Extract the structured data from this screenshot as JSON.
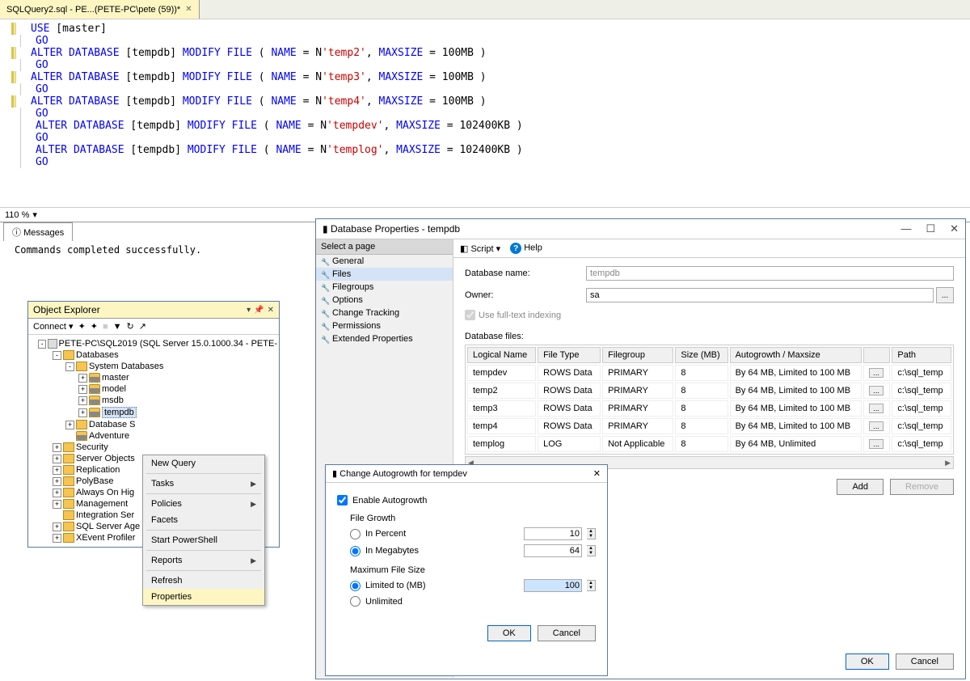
{
  "tab": {
    "label": "SQLQuery2.sql - PE...(PETE-PC\\pete (59))*"
  },
  "sql": {
    "lines": [
      {
        "y": true,
        "tokens": [
          [
            "kw",
            "USE"
          ],
          [
            "norm",
            " [master]"
          ]
        ]
      },
      {
        "y": false,
        "tokens": [
          [
            "go",
            "GO"
          ]
        ]
      },
      {
        "y": true,
        "tokens": [
          [
            "kw",
            "ALTER DATABASE"
          ],
          [
            "norm",
            " [tempdb] "
          ],
          [
            "kw",
            "MODIFY FILE"
          ],
          [
            "norm",
            " "
          ],
          [
            "norm",
            "("
          ],
          [
            "norm",
            " "
          ],
          [
            "kw",
            "NAME"
          ],
          [
            "norm",
            " "
          ],
          [
            "norm",
            "="
          ],
          [
            "norm",
            " N"
          ],
          [
            "str",
            "'temp2'"
          ],
          [
            "norm",
            ","
          ],
          [
            "norm",
            " "
          ],
          [
            "kw",
            "MAXSIZE"
          ],
          [
            "norm",
            " "
          ],
          [
            "norm",
            "="
          ],
          [
            "norm",
            " 100MB "
          ],
          [
            "norm",
            ")"
          ]
        ]
      },
      {
        "y": false,
        "tokens": [
          [
            "go",
            "GO"
          ]
        ]
      },
      {
        "y": true,
        "tokens": [
          [
            "kw",
            "ALTER DATABASE"
          ],
          [
            "norm",
            " [tempdb] "
          ],
          [
            "kw",
            "MODIFY FILE"
          ],
          [
            "norm",
            " "
          ],
          [
            "norm",
            "("
          ],
          [
            "norm",
            " "
          ],
          [
            "kw",
            "NAME"
          ],
          [
            "norm",
            " "
          ],
          [
            "norm",
            "="
          ],
          [
            "norm",
            " N"
          ],
          [
            "str",
            "'temp3'"
          ],
          [
            "norm",
            ","
          ],
          [
            "norm",
            " "
          ],
          [
            "kw",
            "MAXSIZE"
          ],
          [
            "norm",
            " "
          ],
          [
            "norm",
            "="
          ],
          [
            "norm",
            " 100MB "
          ],
          [
            "norm",
            ")"
          ]
        ]
      },
      {
        "y": false,
        "tokens": [
          [
            "go",
            "GO"
          ]
        ]
      },
      {
        "y": true,
        "tokens": [
          [
            "kw",
            "ALTER DATABASE"
          ],
          [
            "norm",
            " [tempdb] "
          ],
          [
            "kw",
            "MODIFY FILE"
          ],
          [
            "norm",
            " "
          ],
          [
            "norm",
            "("
          ],
          [
            "norm",
            " "
          ],
          [
            "kw",
            "NAME"
          ],
          [
            "norm",
            " "
          ],
          [
            "norm",
            "="
          ],
          [
            "norm",
            " N"
          ],
          [
            "str",
            "'temp4'"
          ],
          [
            "norm",
            ","
          ],
          [
            "norm",
            " "
          ],
          [
            "kw",
            "MAXSIZE"
          ],
          [
            "norm",
            " "
          ],
          [
            "norm",
            "="
          ],
          [
            "norm",
            " 100MB "
          ],
          [
            "norm",
            ")"
          ]
        ]
      },
      {
        "y": false,
        "tokens": [
          [
            "go",
            "GO"
          ]
        ]
      },
      {
        "y": false,
        "tokens": [
          [
            "kw",
            "ALTER DATABASE"
          ],
          [
            "norm",
            " [tempdb] "
          ],
          [
            "kw",
            "MODIFY FILE"
          ],
          [
            "norm",
            " "
          ],
          [
            "norm",
            "("
          ],
          [
            "norm",
            " "
          ],
          [
            "kw",
            "NAME"
          ],
          [
            "norm",
            " "
          ],
          [
            "norm",
            "="
          ],
          [
            "norm",
            " N"
          ],
          [
            "str",
            "'tempdev'"
          ],
          [
            "norm",
            ","
          ],
          [
            "norm",
            " "
          ],
          [
            "kw",
            "MAXSIZE"
          ],
          [
            "norm",
            " "
          ],
          [
            "norm",
            "="
          ],
          [
            "norm",
            " 102400KB "
          ],
          [
            "norm",
            ")"
          ]
        ]
      },
      {
        "y": false,
        "tokens": [
          [
            "go",
            "GO"
          ]
        ]
      },
      {
        "y": false,
        "tokens": [
          [
            "kw",
            "ALTER DATABASE"
          ],
          [
            "norm",
            " [tempdb] "
          ],
          [
            "kw",
            "MODIFY FILE"
          ],
          [
            "norm",
            " "
          ],
          [
            "norm",
            "("
          ],
          [
            "norm",
            " "
          ],
          [
            "kw",
            "NAME"
          ],
          [
            "norm",
            " "
          ],
          [
            "norm",
            "="
          ],
          [
            "norm",
            " N"
          ],
          [
            "str",
            "'templog'"
          ],
          [
            "norm",
            ","
          ],
          [
            "norm",
            " "
          ],
          [
            "kw",
            "MAXSIZE"
          ],
          [
            "norm",
            " "
          ],
          [
            "norm",
            "="
          ],
          [
            "norm",
            " 102400KB "
          ],
          [
            "norm",
            ")"
          ]
        ]
      },
      {
        "y": false,
        "tokens": [
          [
            "go",
            "GO"
          ]
        ]
      }
    ]
  },
  "zoom": "110 %",
  "messages": {
    "tab": "Messages",
    "text": "Commands completed successfully."
  },
  "objexp": {
    "title": "Object Explorer",
    "connect": "Connect ▾",
    "tree": [
      {
        "indent": 0,
        "exp": "-",
        "icon": "server",
        "label": "PETE-PC\\SQL2019 (SQL Server 15.0.1000.34 - PETE-"
      },
      {
        "indent": 1,
        "exp": "-",
        "icon": "folder",
        "label": "Databases"
      },
      {
        "indent": 2,
        "exp": "-",
        "icon": "folder",
        "label": "System Databases"
      },
      {
        "indent": 3,
        "exp": "+",
        "icon": "db",
        "label": "master"
      },
      {
        "indent": 3,
        "exp": "+",
        "icon": "db",
        "label": "model"
      },
      {
        "indent": 3,
        "exp": "+",
        "icon": "db",
        "label": "msdb"
      },
      {
        "indent": 3,
        "exp": "+",
        "icon": "db",
        "label": "tempdb",
        "sel": true
      },
      {
        "indent": 2,
        "exp": "+",
        "icon": "folder",
        "label": "Database S"
      },
      {
        "indent": 2,
        "exp": "",
        "icon": "db",
        "label": "Adventure"
      },
      {
        "indent": 1,
        "exp": "+",
        "icon": "folder",
        "label": "Security"
      },
      {
        "indent": 1,
        "exp": "+",
        "icon": "folder",
        "label": "Server Objects"
      },
      {
        "indent": 1,
        "exp": "+",
        "icon": "folder",
        "label": "Replication"
      },
      {
        "indent": 1,
        "exp": "+",
        "icon": "folder",
        "label": "PolyBase"
      },
      {
        "indent": 1,
        "exp": "+",
        "icon": "folder",
        "label": "Always On Hig"
      },
      {
        "indent": 1,
        "exp": "+",
        "icon": "folder",
        "label": "Management"
      },
      {
        "indent": 1,
        "exp": "",
        "icon": "folder",
        "label": "Integration Ser"
      },
      {
        "indent": 1,
        "exp": "+",
        "icon": "folder",
        "label": "SQL Server Age"
      },
      {
        "indent": 1,
        "exp": "+",
        "icon": "folder",
        "label": "XEvent Profiler"
      }
    ]
  },
  "ctx": {
    "items": [
      {
        "label": "New Query"
      },
      {
        "sep": true
      },
      {
        "label": "Tasks",
        "sub": true
      },
      {
        "sep": true
      },
      {
        "label": "Policies",
        "sub": true
      },
      {
        "label": "Facets"
      },
      {
        "sep": true
      },
      {
        "label": "Start PowerShell"
      },
      {
        "sep": true
      },
      {
        "label": "Reports",
        "sub": true
      },
      {
        "sep": true
      },
      {
        "label": "Refresh"
      },
      {
        "label": "Properties",
        "hl": true
      }
    ]
  },
  "dbprop": {
    "title": "Database Properties - tempdb",
    "side_hdr": "Select a page",
    "pages": [
      "General",
      "Files",
      "Filegroups",
      "Options",
      "Change Tracking",
      "Permissions",
      "Extended Properties"
    ],
    "selected_page": 1,
    "script": "Script",
    "help": "Help",
    "dbname_label": "Database name:",
    "dbname": "tempdb",
    "owner_label": "Owner:",
    "owner": "sa",
    "fulltext_label": "Use full-text indexing",
    "files_label": "Database files:",
    "columns": [
      "Logical Name",
      "File Type",
      "Filegroup",
      "Size (MB)",
      "Autogrowth / Maxsize",
      "",
      "Path"
    ],
    "rows": [
      [
        "tempdev",
        "ROWS Data",
        "PRIMARY",
        "8",
        "By 64 MB, Limited to 100 MB",
        "...",
        "c:\\sql_temp"
      ],
      [
        "temp2",
        "ROWS Data",
        "PRIMARY",
        "8",
        "By 64 MB, Limited to 100 MB",
        "...",
        "c:\\sql_temp"
      ],
      [
        "temp3",
        "ROWS Data",
        "PRIMARY",
        "8",
        "By 64 MB, Limited to 100 MB",
        "...",
        "c:\\sql_temp"
      ],
      [
        "temp4",
        "ROWS Data",
        "PRIMARY",
        "8",
        "By 64 MB, Limited to 100 MB",
        "...",
        "c:\\sql_temp"
      ],
      [
        "templog",
        "LOG",
        "Not Applicable",
        "8",
        "By 64 MB, Unlimited",
        "...",
        "c:\\sql_temp"
      ]
    ],
    "add": "Add",
    "remove": "Remove",
    "ok": "OK",
    "cancel": "Cancel"
  },
  "auto": {
    "title": "Change Autogrowth for tempdev",
    "enable": "Enable Autogrowth",
    "fg_label": "File Growth",
    "percent": "In Percent",
    "percent_val": "10",
    "mb": "In Megabytes",
    "mb_val": "64",
    "max_label": "Maximum File Size",
    "limited": "Limited to (MB)",
    "limited_val": "100",
    "unlimited": "Unlimited",
    "ok": "OK",
    "cancel": "Cancel"
  }
}
